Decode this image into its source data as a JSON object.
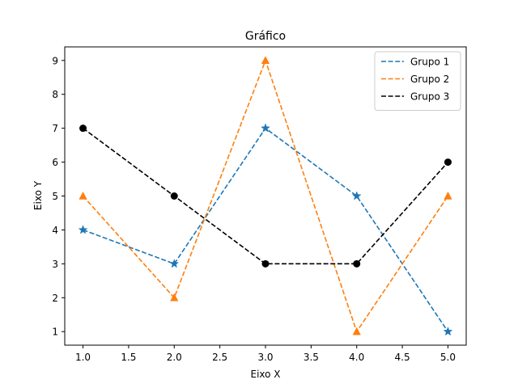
{
  "chart_data": {
    "type": "line",
    "title": "Gráfico",
    "xlabel": "Eixo X",
    "ylabel": "Eixo Y",
    "x": [
      1,
      2,
      3,
      4,
      5
    ],
    "xlim": [
      0.8,
      5.2
    ],
    "ylim": [
      0.6,
      9.4
    ],
    "xticks": [
      "1.0",
      "1.5",
      "2.0",
      "2.5",
      "3.0",
      "3.5",
      "4.0",
      "4.5",
      "5.0"
    ],
    "yticks": [
      "1",
      "2",
      "3",
      "4",
      "5",
      "6",
      "7",
      "8",
      "9"
    ],
    "grid": false,
    "legend_position": "top-right",
    "series": [
      {
        "name": "Grupo 1",
        "values": [
          4,
          3,
          7,
          5,
          1
        ],
        "color": "#1f77b4",
        "marker": "star",
        "linestyle": "dashed"
      },
      {
        "name": "Grupo 2",
        "values": [
          5,
          2,
          9,
          1,
          5
        ],
        "color": "#ff7f0e",
        "marker": "triangle",
        "linestyle": "dashed"
      },
      {
        "name": "Grupo 3",
        "values": [
          7,
          5,
          3,
          3,
          6
        ],
        "color": "#000000",
        "marker": "circle",
        "linestyle": "dashed"
      }
    ]
  }
}
